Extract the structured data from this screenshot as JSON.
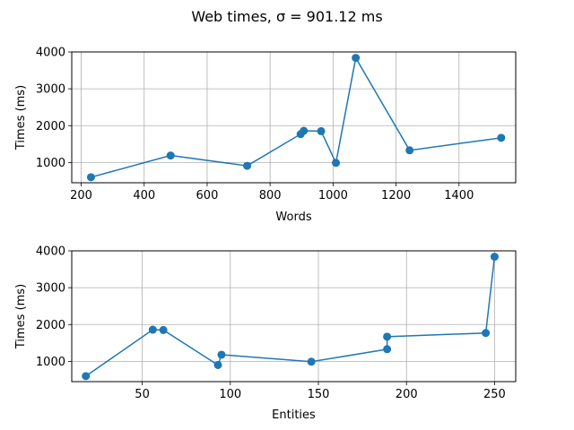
{
  "figure": {
    "title": "Web times, σ = 901.12 ms"
  },
  "chart_data": [
    {
      "type": "line",
      "xlabel": "Words",
      "ylabel": "Times (ms)",
      "xlim": [
        170,
        1580
      ],
      "ylim": [
        450,
        4000
      ],
      "xticks": [
        200,
        400,
        600,
        800,
        1000,
        1200,
        1400
      ],
      "yticks": [
        1000,
        2000,
        3000,
        4000
      ],
      "grid": true,
      "color": "#1f77b4",
      "x": [
        231,
        484,
        727,
        897,
        907,
        962,
        1009,
        1072,
        1243,
        1534
      ],
      "y": [
        600,
        1190,
        910,
        1770,
        1860,
        1850,
        990,
        3840,
        1330,
        1670
      ]
    },
    {
      "type": "line",
      "xlabel": "Entities",
      "ylabel": "Times (ms)",
      "xlim": [
        10,
        262
      ],
      "ylim": [
        450,
        4000
      ],
      "xticks": [
        50,
        100,
        150,
        200,
        250
      ],
      "yticks": [
        1000,
        2000,
        3000,
        4000
      ],
      "grid": true,
      "color": "#1f77b4",
      "x": [
        18,
        56,
        62,
        93,
        95,
        146,
        189,
        189,
        245,
        250
      ],
      "y": [
        600,
        1860,
        1850,
        900,
        1180,
        990,
        1330,
        1670,
        1770,
        3840
      ]
    }
  ]
}
